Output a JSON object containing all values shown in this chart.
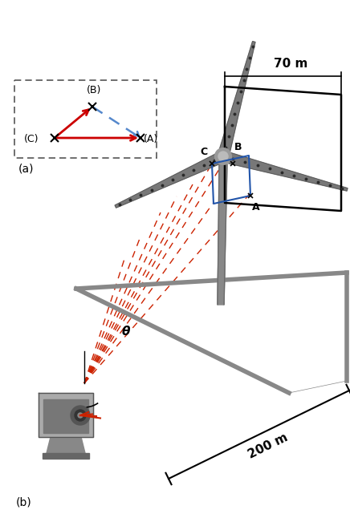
{
  "background_color": "#ffffff",
  "fig_width": 4.36,
  "fig_height": 6.51,
  "dpi": 100,
  "inset_label_a": "(a)",
  "label_b": "(b)",
  "coord_A_label": "(A)",
  "coord_B_label": "(B)",
  "coord_C_label": "(C)",
  "label_70m": "70 m",
  "label_200m": "200 m",
  "label_theta": "θ",
  "arrow_red_color": "#cc0000",
  "arrow_blue_color": "#5588cc",
  "blue_rect_color": "#2255aa",
  "ground_color": "#888888",
  "turbine_gray": "#808080",
  "turbine_dark": "#606060",
  "dashed_red_color": "#cc2200",
  "black_color": "#000000",
  "camera_gray": "#888888",
  "camera_dark": "#555555"
}
